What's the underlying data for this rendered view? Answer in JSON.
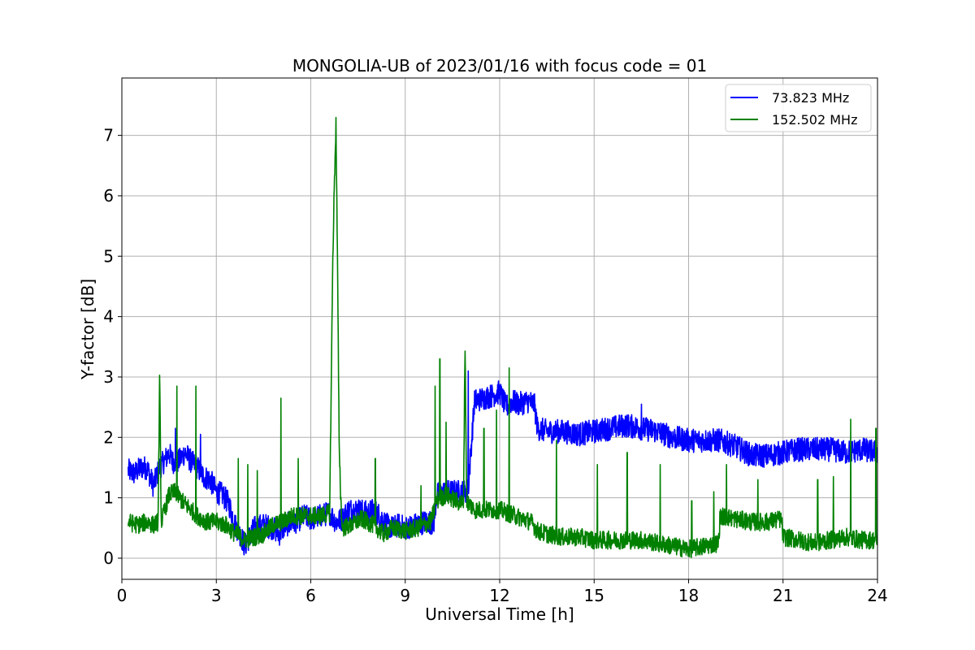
{
  "chart_data": {
    "type": "line",
    "title": "MONGOLIA-UB of 2023/01/16 with focus code = 01",
    "xlabel": "Universal Time [h]",
    "ylabel": "Y-factor [dB]",
    "xlim": [
      0,
      24
    ],
    "ylim": [
      -0.35,
      7.95
    ],
    "xticks": [
      0,
      3,
      6,
      9,
      12,
      15,
      18,
      21,
      24
    ],
    "yticks": [
      0,
      1,
      2,
      3,
      4,
      5,
      6,
      7
    ],
    "grid": true,
    "legend": "top-right",
    "series": [
      {
        "name": "  73.823 MHz",
        "color": "#0000ff",
        "noise": 0.2,
        "x": [
          0.2,
          0.4,
          0.6,
          0.8,
          1.0,
          1.1,
          1.2,
          1.4,
          1.5,
          1.6,
          1.8,
          2.0,
          2.2,
          2.4,
          2.6,
          2.8,
          3.0,
          3.2,
          3.4,
          3.6,
          3.8,
          3.9,
          4.0,
          4.2,
          4.5,
          4.8,
          5.0,
          5.2,
          5.5,
          5.8,
          6.0,
          6.3,
          6.6,
          6.8,
          7.0,
          7.2,
          7.5,
          7.8,
          8.0,
          8.2,
          8.4,
          8.6,
          8.8,
          9.0,
          9.3,
          9.6,
          9.8,
          9.9,
          10.0,
          10.3,
          10.6,
          10.9,
          11.0,
          11.2,
          11.5,
          11.8,
          12.0,
          12.2,
          12.4,
          12.6,
          12.9,
          13.1,
          13.2,
          13.5,
          14.0,
          14.5,
          15.0,
          15.5,
          16.0,
          16.5,
          17.0,
          17.5,
          18.0,
          18.5,
          19.0,
          19.5,
          20.0,
          20.5,
          21.0,
          21.5,
          22.0,
          22.5,
          23.0,
          23.5,
          24.0
        ],
        "y": [
          1.45,
          1.4,
          1.5,
          1.5,
          1.2,
          1.35,
          1.5,
          1.65,
          1.75,
          1.6,
          1.6,
          1.75,
          1.6,
          1.5,
          1.35,
          1.3,
          1.1,
          1.05,
          0.9,
          0.55,
          0.35,
          0.2,
          0.3,
          0.5,
          0.55,
          0.5,
          0.4,
          0.55,
          0.6,
          0.7,
          0.65,
          0.7,
          0.75,
          0.6,
          0.65,
          0.8,
          0.8,
          0.75,
          0.8,
          0.7,
          0.55,
          0.5,
          0.55,
          0.5,
          0.55,
          0.6,
          0.6,
          0.55,
          1.05,
          1.1,
          1.1,
          1.1,
          1.15,
          2.6,
          2.65,
          2.7,
          2.75,
          2.5,
          2.6,
          2.55,
          2.6,
          2.55,
          2.15,
          2.1,
          2.1,
          2.05,
          2.1,
          2.15,
          2.2,
          2.15,
          2.1,
          2.0,
          1.95,
          1.95,
          1.95,
          1.85,
          1.7,
          1.7,
          1.75,
          1.8,
          1.8,
          1.8,
          1.75,
          1.8,
          1.75
        ]
      },
      {
        "name": "152.502 MHz",
        "color": "#008000",
        "noise": 0.15,
        "x": [
          0.2,
          0.5,
          0.8,
          1.0,
          1.15,
          1.2,
          1.25,
          1.5,
          1.7,
          1.9,
          2.1,
          2.4,
          2.7,
          3.0,
          3.3,
          3.6,
          3.9,
          4.2,
          4.5,
          4.8,
          5.1,
          5.4,
          5.7,
          6.0,
          6.3,
          6.6,
          6.7,
          6.75,
          6.8,
          6.85,
          6.9,
          6.95,
          7.0,
          7.3,
          7.6,
          8.0,
          8.3,
          8.6,
          9.0,
          9.4,
          9.8,
          9.9,
          10.0,
          10.3,
          10.6,
          10.85,
          10.9,
          10.95,
          11.2,
          11.5,
          12.0,
          12.5,
          13.0,
          13.2,
          13.5,
          14.0,
          14.5,
          15.0,
          15.5,
          16.0,
          16.5,
          17.0,
          17.5,
          18.0,
          18.5,
          18.95,
          19.0,
          19.5,
          20.0,
          20.5,
          20.95,
          21.0,
          21.5,
          22.0,
          22.5,
          23.0,
          23.5,
          24.0
        ],
        "y": [
          0.6,
          0.55,
          0.6,
          0.55,
          0.6,
          3.0,
          0.6,
          1.05,
          1.1,
          0.95,
          0.85,
          0.7,
          0.6,
          0.6,
          0.55,
          0.4,
          0.3,
          0.35,
          0.4,
          0.55,
          0.6,
          0.7,
          0.7,
          0.7,
          0.7,
          0.75,
          5.0,
          6.2,
          7.2,
          4.8,
          2.0,
          1.0,
          0.5,
          0.55,
          0.65,
          0.55,
          0.4,
          0.5,
          0.45,
          0.5,
          0.6,
          0.75,
          0.95,
          1.05,
          0.95,
          0.9,
          3.6,
          0.95,
          0.8,
          0.8,
          0.8,
          0.7,
          0.6,
          0.45,
          0.4,
          0.35,
          0.35,
          0.3,
          0.3,
          0.3,
          0.3,
          0.25,
          0.2,
          0.15,
          0.2,
          0.25,
          0.7,
          0.65,
          0.6,
          0.6,
          0.65,
          0.35,
          0.3,
          0.25,
          0.3,
          0.35,
          0.3,
          0.3
        ]
      }
    ],
    "spikes": [
      {
        "series": 1,
        "x": 1.75,
        "y": 2.85
      },
      {
        "series": 1,
        "x": 2.35,
        "y": 2.85
      },
      {
        "series": 1,
        "x": 3.7,
        "y": 1.65
      },
      {
        "series": 1,
        "x": 4.0,
        "y": 1.55
      },
      {
        "series": 1,
        "x": 4.3,
        "y": 1.45
      },
      {
        "series": 1,
        "x": 5.05,
        "y": 2.65
      },
      {
        "series": 1,
        "x": 5.6,
        "y": 1.65
      },
      {
        "series": 1,
        "x": 6.9,
        "y": 1.95
      },
      {
        "series": 1,
        "x": 8.05,
        "y": 1.65
      },
      {
        "series": 1,
        "x": 9.5,
        "y": 1.2
      },
      {
        "series": 1,
        "x": 9.95,
        "y": 2.85
      },
      {
        "series": 1,
        "x": 10.1,
        "y": 3.3
      },
      {
        "series": 1,
        "x": 10.3,
        "y": 2.25
      },
      {
        "series": 1,
        "x": 11.5,
        "y": 2.15
      },
      {
        "series": 1,
        "x": 11.9,
        "y": 2.45
      },
      {
        "series": 1,
        "x": 12.3,
        "y": 3.15
      },
      {
        "series": 1,
        "x": 13.8,
        "y": 1.95
      },
      {
        "series": 1,
        "x": 15.1,
        "y": 1.55
      },
      {
        "series": 1,
        "x": 16.05,
        "y": 1.75
      },
      {
        "series": 1,
        "x": 17.1,
        "y": 1.55
      },
      {
        "series": 1,
        "x": 18.1,
        "y": 0.95
      },
      {
        "series": 1,
        "x": 18.8,
        "y": 1.1
      },
      {
        "series": 1,
        "x": 19.2,
        "y": 1.55
      },
      {
        "series": 1,
        "x": 20.2,
        "y": 1.3
      },
      {
        "series": 1,
        "x": 22.1,
        "y": 1.3
      },
      {
        "series": 1,
        "x": 22.6,
        "y": 1.35
      },
      {
        "series": 1,
        "x": 23.15,
        "y": 2.3
      },
      {
        "series": 1,
        "x": 23.95,
        "y": 2.15
      },
      {
        "series": 0,
        "x": 1.7,
        "y": 2.15
      },
      {
        "series": 0,
        "x": 2.5,
        "y": 2.05
      },
      {
        "series": 0,
        "x": 11.0,
        "y": 3.1
      },
      {
        "series": 0,
        "x": 16.5,
        "y": 2.55
      }
    ]
  }
}
